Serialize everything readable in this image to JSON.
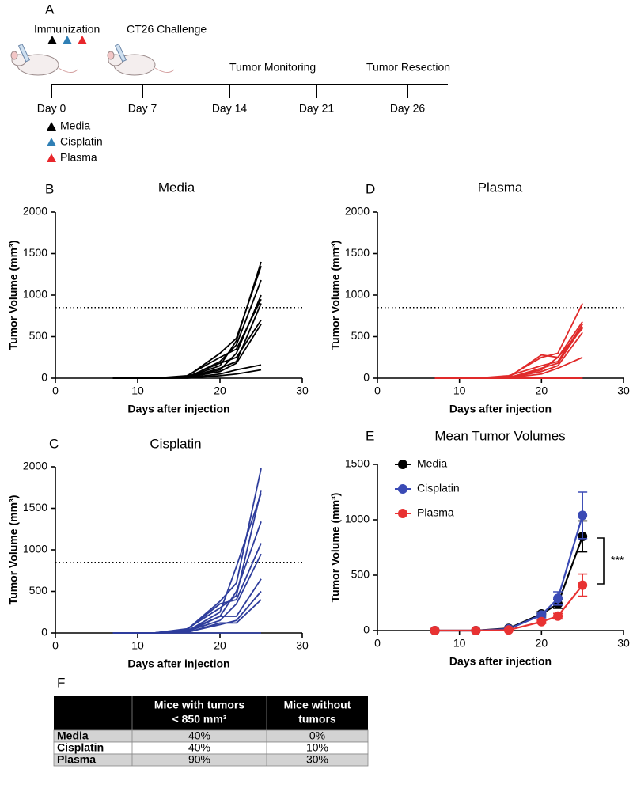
{
  "timeline": {
    "panel": "A",
    "top_labels": [
      "Immunization",
      "CT26 Challenge",
      "Tumor  Monitoring",
      "Tumor  Resection"
    ],
    "days": [
      "Day 0",
      "Day 7",
      "Day 14",
      "Day 21",
      "Day 26"
    ],
    "legend": [
      {
        "name": "Media",
        "color": "#000000"
      },
      {
        "name": "Cisplatin",
        "color": "#2f7fb5"
      },
      {
        "name": "Plasma",
        "color": "#e8262b"
      }
    ]
  },
  "chart_data": [
    {
      "type": "line",
      "panel": "B",
      "title": "Media",
      "x_label": "Days after injection",
      "y_label": "Tumor Volume (mm³)",
      "x": [
        7,
        12,
        16,
        20,
        22,
        25
      ],
      "color": "#000000",
      "threshold": 850,
      "xlim": [
        0,
        30
      ],
      "xticks": [
        0,
        10,
        20,
        30
      ],
      "ylim": [
        0,
        2000
      ],
      "yticks": [
        0,
        500,
        1000,
        1500,
        2000
      ],
      "series": [
        {
          "values": [
            0,
            0,
            10,
            150,
            450,
            1400
          ]
        },
        {
          "values": [
            0,
            0,
            20,
            300,
            480,
            1350
          ]
        },
        {
          "values": [
            0,
            0,
            5,
            200,
            400,
            1180
          ]
        },
        {
          "values": [
            0,
            0,
            10,
            100,
            300,
            1000
          ]
        },
        {
          "values": [
            0,
            0,
            30,
            250,
            350,
            950
          ]
        },
        {
          "values": [
            0,
            0,
            5,
            120,
            200,
            900
          ]
        },
        {
          "values": [
            0,
            0,
            15,
            180,
            250,
            700
          ]
        },
        {
          "values": [
            0,
            0,
            10,
            80,
            180,
            650
          ]
        },
        {
          "values": [
            0,
            0,
            5,
            50,
            100,
            160
          ]
        },
        {
          "values": [
            0,
            0,
            0,
            30,
            50,
            100
          ]
        }
      ]
    },
    {
      "type": "line",
      "panel": "D",
      "title": "Plasma",
      "x_label": "Days after injection",
      "y_label": "Tumor Volume (mm³)",
      "x": [
        7,
        12,
        16,
        20,
        22,
        25
      ],
      "color": "#e02a2a",
      "threshold": 850,
      "xlim": [
        0,
        30
      ],
      "xticks": [
        0,
        10,
        20,
        30
      ],
      "ylim": [
        0,
        2000
      ],
      "yticks": [
        0,
        500,
        1000,
        1500,
        2000
      ],
      "series": [
        {
          "values": [
            0,
            0,
            20,
            250,
            300,
            900
          ]
        },
        {
          "values": [
            0,
            0,
            10,
            280,
            250,
            680
          ]
        },
        {
          "values": [
            0,
            0,
            30,
            150,
            200,
            650
          ]
        },
        {
          "values": [
            0,
            0,
            5,
            120,
            180,
            620
          ]
        },
        {
          "values": [
            0,
            0,
            10,
            100,
            250,
            600
          ]
        },
        {
          "values": [
            0,
            0,
            5,
            80,
            150,
            550
          ]
        },
        {
          "values": [
            0,
            0,
            5,
            50,
            120,
            250
          ]
        },
        {
          "values": [
            0,
            0,
            0,
            0,
            0,
            0
          ]
        },
        {
          "values": [
            0,
            0,
            0,
            0,
            0,
            0
          ]
        },
        {
          "values": [
            0,
            0,
            0,
            0,
            0,
            0
          ]
        }
      ]
    },
    {
      "type": "line",
      "panel": "C",
      "title": "Cisplatin",
      "x_label": "Days after injection",
      "y_label": "Tumor Volume (mm³)",
      "x": [
        7,
        12,
        16,
        20,
        22,
        25
      ],
      "color": "#2e3d9c",
      "threshold": 850,
      "xlim": [
        0,
        30
      ],
      "xticks": [
        0,
        10,
        20,
        30
      ],
      "ylim": [
        0,
        2000
      ],
      "yticks": [
        0,
        500,
        1000,
        1500,
        2000
      ],
      "series": [
        {
          "values": [
            0,
            0,
            40,
            380,
            600,
            1980
          ]
        },
        {
          "values": [
            0,
            0,
            50,
            300,
            450,
            1720
          ]
        },
        {
          "values": [
            0,
            0,
            20,
            250,
            800,
            1680
          ]
        },
        {
          "values": [
            0,
            0,
            30,
            200,
            500,
            1340
          ]
        },
        {
          "values": [
            0,
            0,
            40,
            350,
            400,
            1080
          ]
        },
        {
          "values": [
            0,
            0,
            20,
            150,
            350,
            950
          ]
        },
        {
          "values": [
            0,
            0,
            10,
            200,
            200,
            650
          ]
        },
        {
          "values": [
            0,
            0,
            10,
            100,
            150,
            500
          ]
        },
        {
          "values": [
            0,
            0,
            5,
            120,
            120,
            400
          ]
        },
        {
          "values": [
            0,
            0,
            0,
            0,
            0,
            0
          ]
        }
      ]
    },
    {
      "type": "line",
      "panel": "E",
      "title": "Mean Tumor Volumes",
      "x_label": "Days after injection",
      "y_label": "Tumor Volume (mm³)",
      "x": [
        7,
        12,
        16,
        20,
        22,
        25
      ],
      "markers": true,
      "legend": "upper left",
      "annotation": "***",
      "xlim": [
        0,
        30
      ],
      "xticks": [
        0,
        10,
        20,
        30
      ],
      "ylim": [
        0,
        1500
      ],
      "yticks": [
        0,
        500,
        1000,
        1500
      ],
      "series": [
        {
          "name": "Media",
          "color": "#000000",
          "values": [
            0,
            0,
            20,
            150,
            240,
            850
          ],
          "errors": [
            0,
            0,
            5,
            20,
            40,
            140
          ]
        },
        {
          "name": "Cisplatin",
          "color": "#3a4ab5",
          "values": [
            0,
            0,
            15,
            140,
            290,
            1040
          ],
          "errors": [
            0,
            0,
            5,
            25,
            60,
            210
          ]
        },
        {
          "name": "Plasma",
          "color": "#e83232",
          "values": [
            0,
            0,
            5,
            80,
            130,
            410
          ],
          "errors": [
            0,
            0,
            3,
            15,
            25,
            100
          ]
        }
      ]
    }
  ],
  "table": {
    "panel": "F",
    "header": [
      [
        "Mice with tumors",
        "< 850 mm³"
      ],
      [
        "Mice without",
        "tumors"
      ]
    ],
    "rows": [
      [
        "Media",
        "40%",
        "0%"
      ],
      [
        "Cisplatin",
        "40%",
        "10%"
      ],
      [
        "Plasma",
        "90%",
        "30%"
      ]
    ]
  }
}
